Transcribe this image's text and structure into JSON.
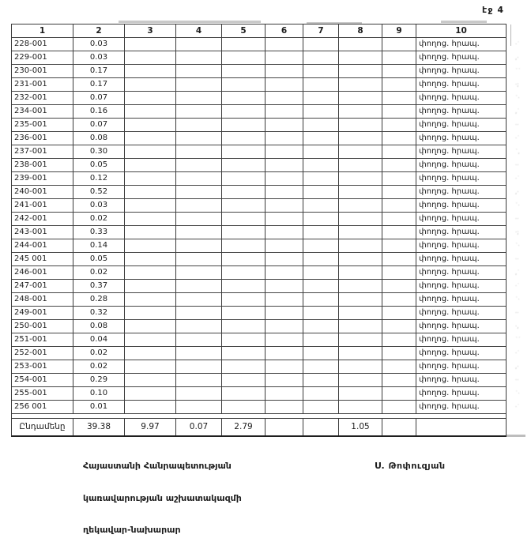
{
  "page_label": "էջ 4",
  "colors": {
    "ink": "#1c1c1c",
    "table_border": "#3a3a3a",
    "artifact_gray": "#c9c9c9"
  },
  "table": {
    "headers": [
      "1",
      "2",
      "3",
      "4",
      "5",
      "6",
      "7",
      "8",
      "9",
      "10"
    ],
    "rows": [
      {
        "id": "228-001",
        "value": "0.03",
        "note": "փողոց. հրապ."
      },
      {
        "id": "229-001",
        "value": "0.03",
        "note": "փողոց. հրապ."
      },
      {
        "id": "230-001",
        "value": "0.17",
        "note": "փողոց. հրապ."
      },
      {
        "id": "231-001",
        "value": "0.17",
        "note": "փողոց. հրապ."
      },
      {
        "id": "232-001",
        "value": "0.07",
        "note": "փողոց. հրապ."
      },
      {
        "id": "234-001",
        "value": "0.16",
        "note": "փողոց. հրապ."
      },
      {
        "id": "235-001",
        "value": "0.07",
        "note": "փողոց. հրապ."
      },
      {
        "id": "236-001",
        "value": "0.08",
        "note": "փողոց. հրապ."
      },
      {
        "id": "237-001",
        "value": "0.30",
        "note": "փողոց. հրապ."
      },
      {
        "id": "238-001",
        "value": "0.05",
        "note": "փողոց. հրապ."
      },
      {
        "id": "239-001",
        "value": "0.12",
        "note": "փողոց. հրապ."
      },
      {
        "id": "240-001",
        "value": "0.52",
        "note": "փողոց. հրապ."
      },
      {
        "id": "241-001",
        "value": "0.03",
        "note": "փողոց. հրապ."
      },
      {
        "id": "242-001",
        "value": "0.02",
        "note": "փողոց. հրապ."
      },
      {
        "id": "243-001",
        "value": "0.33",
        "note": "փողոց. հրապ."
      },
      {
        "id": "244-001",
        "value": "0.14",
        "note": "փողոց. հրապ."
      },
      {
        "id": "245 001",
        "value": "0.05",
        "note": "փողոց. հրապ."
      },
      {
        "id": "246-001",
        "value": "0.02",
        "note": "փողոց. հրապ."
      },
      {
        "id": "247-001",
        "value": "0.37",
        "note": "փողոց. հրապ."
      },
      {
        "id": "248-001",
        "value": "0.28",
        "note": "փողոց. հրապ."
      },
      {
        "id": "249-001",
        "value": "0.32",
        "note": "փողոց. հրապ."
      },
      {
        "id": "250-001",
        "value": "0.08",
        "note": "փողոց. հրապ."
      },
      {
        "id": "251-001",
        "value": "0.04",
        "note": "փողոց. հրապ."
      },
      {
        "id": "252-001",
        "value": "0.02",
        "note": "փողոց. հրապ."
      },
      {
        "id": "253-001",
        "value": "0.02",
        "note": "փողոց. հրապ."
      },
      {
        "id": "254-001",
        "value": "0.29",
        "note": "փողոց. հրապ."
      },
      {
        "id": "255-001",
        "value": "0.10",
        "note": "փողոց. հրապ."
      },
      {
        "id": "256 001",
        "value": "0.01",
        "note": "փողոց. հրապ."
      }
    ],
    "totals": {
      "label": "Ընդամենը",
      "col2": "39.38",
      "col3": "9.97",
      "col4": "0.07",
      "col5": "2.79",
      "col8": "1.05"
    }
  },
  "footer": {
    "org_line1": "Հայաստանի Հանրապետության",
    "org_line2": "կառավարության աշխատակազմի",
    "org_line3": "ղեկավար-նախարար",
    "signature": "Ս. Թոփուզյան"
  },
  "artifacts": {
    "margin_marks": [
      "·˙",
      ",·",
      "˙˙",
      "·;",
      "˙·",
      ",˙",
      "··",
      "·˙",
      "˙,",
      "··",
      "·˙",
      ",·",
      "˙·",
      "··",
      "·;",
      "˙·",
      "··",
      ",˙",
      "·˙",
      "˙·",
      "··",
      "·,",
      "˙˙",
      "·˙",
      ",·",
      "··",
      "˙·",
      "·˙"
    ]
  }
}
